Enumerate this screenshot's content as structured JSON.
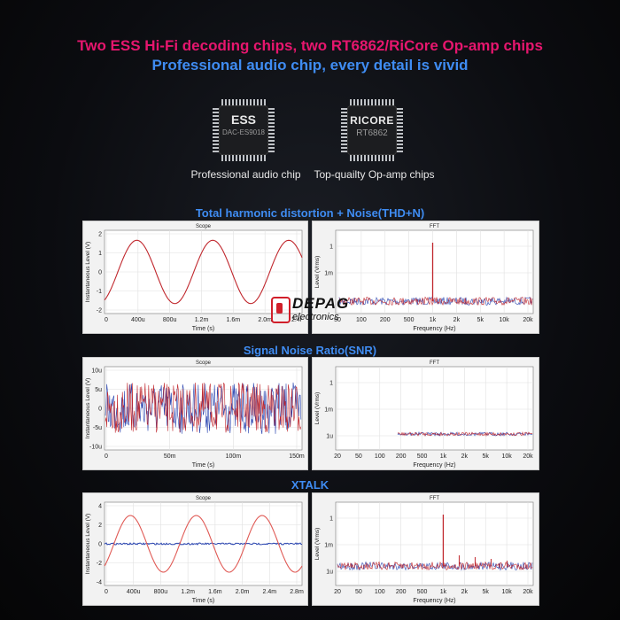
{
  "header": {
    "line1": "Two ESS Hi-Fi decoding chips, two RT6862/RiCore Op-amp chips",
    "line2": "Professional audio chip, every detail is vivid"
  },
  "chips": [
    {
      "mark": "ESS",
      "model": "DAC-ES9018",
      "caption": "Professional audio chip"
    },
    {
      "mark": "RICORE",
      "model": "RT6862",
      "caption": "Top-quailty Op-amp chips"
    }
  ],
  "logo": {
    "name": "DEPAG",
    "sub": "electronics"
  },
  "colors": {
    "pink": "#e6166e",
    "blue": "#3f8cf2",
    "trace_red": "#c0272d",
    "trace_blue": "#2a45b0"
  },
  "sections": [
    {
      "title": "Total harmonic distortion + Noise(THD+N)",
      "scope": {
        "title": "Scope",
        "ylabel": "Instantaneous Level (V)",
        "xlabel": "Time (s)",
        "yticks": [
          "2",
          "1",
          "0",
          "-1",
          "-2"
        ],
        "xticks": [
          "0",
          "400u",
          "800u",
          "1.2m",
          "1.6m",
          "2.0m",
          "2.4r"
        ]
      },
      "fft": {
        "title": "FFT",
        "ylabel": "Level (Vrms)",
        "xlabel": "Frequency (Hz)",
        "yticks": [
          "1",
          "1m"
        ],
        "xticks": [
          "50",
          "100",
          "200",
          "500",
          "1k",
          "2k",
          "5k",
          "10k",
          "20k"
        ]
      }
    },
    {
      "title": "Signal Noise Ratio(SNR)",
      "scope": {
        "title": "Scope",
        "ylabel": "Instantaneous Level (V)",
        "xlabel": "Time (s)",
        "yticks": [
          "10u",
          "5u",
          "0",
          "-5u",
          "-10u"
        ],
        "xticks": [
          "0",
          "50m",
          "100m",
          "150m"
        ]
      },
      "fft": {
        "title": "FFT",
        "ylabel": "Level (Vrms)",
        "xlabel": "Frequency (Hz)",
        "yticks": [
          "1",
          "1m",
          "1u"
        ],
        "xticks": [
          "20",
          "50",
          "100",
          "200",
          "500",
          "1k",
          "2k",
          "5k",
          "10k",
          "20k"
        ]
      }
    },
    {
      "title": "XTALK",
      "scope": {
        "title": "Scope",
        "ylabel": "Instantaneous Level (V)",
        "xlabel": "Time (s)",
        "yticks": [
          "4",
          "2",
          "0",
          "-2",
          "-4"
        ],
        "xticks": [
          "0",
          "400u",
          "800u",
          "1.2m",
          "1.6m",
          "2.0m",
          "2.4m",
          "2.8m"
        ]
      },
      "fft": {
        "title": "FFT",
        "ylabel": "Level (Vrms)",
        "xlabel": "Frequency (Hz)",
        "yticks": [
          "1",
          "1m",
          "1u"
        ],
        "xticks": [
          "20",
          "50",
          "100",
          "200",
          "500",
          "1k",
          "2k",
          "5k",
          "10k",
          "20k"
        ]
      }
    }
  ]
}
